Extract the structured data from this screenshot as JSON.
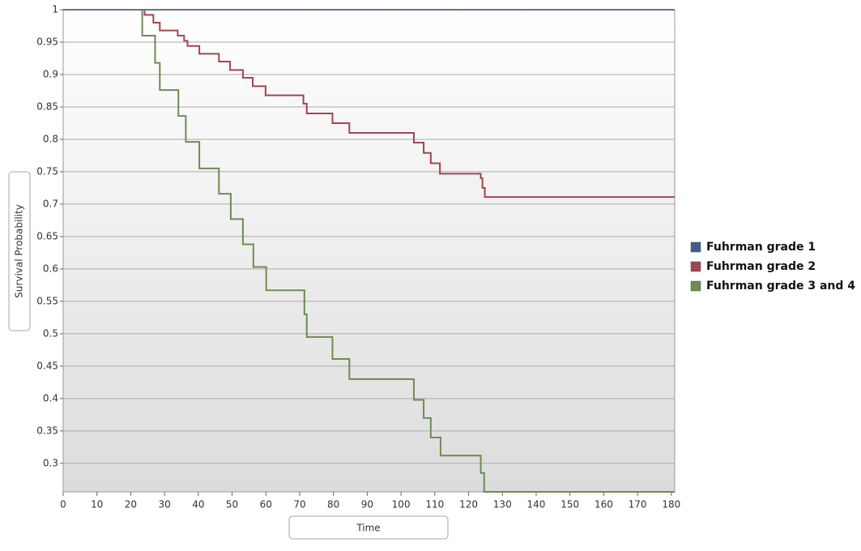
{
  "chart_data": {
    "type": "step",
    "xlabel": "Time",
    "ylabel": "Survival Probability",
    "xlim": [
      0,
      181
    ],
    "ylim": [
      0.256,
      1
    ],
    "xticks": [
      0,
      10,
      20,
      30,
      40,
      50,
      60,
      70,
      80,
      90,
      100,
      110,
      120,
      130,
      140,
      150,
      160,
      170,
      180
    ],
    "yticks": [
      0.3,
      0.35,
      0.4,
      0.45,
      0.5,
      0.55,
      0.6,
      0.65,
      0.7,
      0.75,
      0.8,
      0.85,
      0.9,
      0.95,
      1
    ],
    "grid": true,
    "legend": "right",
    "series": [
      {
        "name": "Fuhrman grade 1",
        "color": "#3d5f8c",
        "x": [
          0,
          181
        ],
        "values": [
          1,
          1
        ]
      },
      {
        "name": "Fuhrman grade 2",
        "color": "#a04650",
        "x": [
          0,
          24.1,
          26.7,
          28.6,
          33.9,
          35.8,
          36.8,
          40.3,
          46.1,
          49.4,
          53.2,
          56.1,
          59.9,
          71.1,
          72.1,
          79.7,
          84.7,
          103.8,
          106.7,
          108.8,
          111.5,
          123.6,
          124.1,
          124.8,
          181
        ],
        "values": [
          1,
          0.992,
          0.98,
          0.968,
          0.96,
          0.952,
          0.944,
          0.932,
          0.92,
          0.907,
          0.895,
          0.882,
          0.868,
          0.855,
          0.84,
          0.825,
          0.81,
          0.795,
          0.779,
          0.763,
          0.747,
          0.74,
          0.725,
          0.711,
          0.711
        ]
      },
      {
        "name": "Fuhrman grade 3 and 4",
        "color": "#6e8c50",
        "x": [
          0,
          23.4,
          27.2,
          28.6,
          34.1,
          36.3,
          40.3,
          46.1,
          49.6,
          53.2,
          56.3,
          60.1,
          71.4,
          72.1,
          79.7,
          84.7,
          103.8,
          106.7,
          108.8,
          111.7,
          123.6,
          124.6,
          181
        ],
        "values": [
          1,
          0.96,
          0.918,
          0.876,
          0.836,
          0.796,
          0.755,
          0.716,
          0.677,
          0.638,
          0.603,
          0.567,
          0.53,
          0.495,
          0.461,
          0.43,
          0.398,
          0.37,
          0.34,
          0.312,
          0.285,
          0.256,
          0.256
        ]
      }
    ]
  }
}
